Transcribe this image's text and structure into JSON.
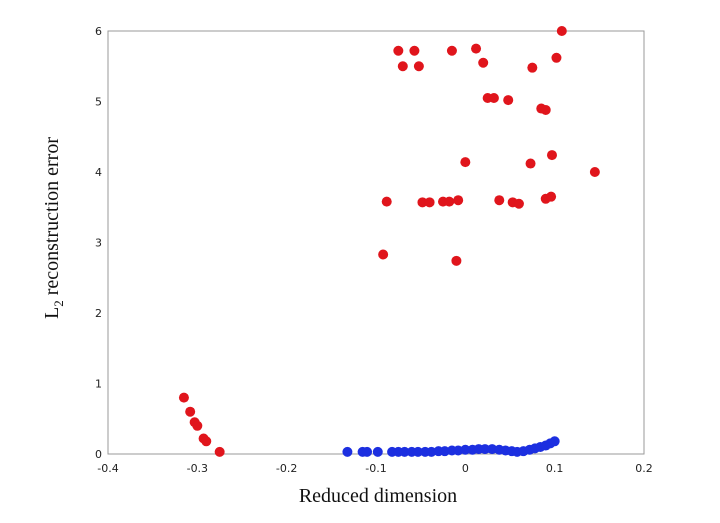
{
  "chart_data": {
    "type": "scatter",
    "title": "",
    "xlabel": "Reduced dimension",
    "ylabel_main": "L",
    "ylabel_sub": "2",
    "ylabel_rest": " reconstruction error",
    "xlim": [
      -0.4,
      0.2
    ],
    "ylim": [
      0,
      6
    ],
    "xticks": [
      "-0.4",
      "-0.3",
      "-0.2",
      "-0.1",
      "0",
      "0.1",
      "0.2"
    ],
    "yticks": [
      "0",
      "1",
      "2",
      "3",
      "4",
      "5",
      "6"
    ],
    "grid": false,
    "legend": "none",
    "series": [
      {
        "color": "#e0151c",
        "points": [
          [
            -0.315,
            0.8
          ],
          [
            -0.308,
            0.6
          ],
          [
            -0.303,
            0.45
          ],
          [
            -0.3,
            0.4
          ],
          [
            -0.293,
            0.22
          ],
          [
            -0.29,
            0.18
          ],
          [
            -0.275,
            0.03
          ],
          [
            -0.092,
            2.83
          ],
          [
            -0.088,
            3.58
          ],
          [
            -0.075,
            5.72
          ],
          [
            -0.07,
            5.5
          ],
          [
            -0.057,
            5.72
          ],
          [
            -0.052,
            5.5
          ],
          [
            -0.048,
            3.57
          ],
          [
            -0.04,
            3.57
          ],
          [
            -0.025,
            3.58
          ],
          [
            -0.018,
            3.58
          ],
          [
            -0.015,
            5.72
          ],
          [
            -0.01,
            2.74
          ],
          [
            -0.008,
            3.6
          ],
          [
            0.0,
            4.14
          ],
          [
            0.012,
            5.75
          ],
          [
            0.02,
            5.55
          ],
          [
            0.025,
            5.05
          ],
          [
            0.032,
            5.05
          ],
          [
            0.038,
            3.6
          ],
          [
            0.048,
            5.02
          ],
          [
            0.053,
            3.57
          ],
          [
            0.06,
            3.55
          ],
          [
            0.073,
            4.12
          ],
          [
            0.075,
            5.48
          ],
          [
            0.085,
            4.9
          ],
          [
            0.09,
            3.62
          ],
          [
            0.09,
            4.88
          ],
          [
            0.096,
            3.65
          ],
          [
            0.097,
            4.24
          ],
          [
            0.102,
            5.62
          ],
          [
            0.108,
            6.0
          ],
          [
            0.145,
            4.0
          ]
        ]
      },
      {
        "color": "#1c2fe0",
        "points": [
          [
            -0.132,
            0.03
          ],
          [
            -0.115,
            0.03
          ],
          [
            -0.11,
            0.03
          ],
          [
            -0.098,
            0.03
          ],
          [
            -0.082,
            0.03
          ],
          [
            -0.075,
            0.03
          ],
          [
            -0.068,
            0.03
          ],
          [
            -0.06,
            0.03
          ],
          [
            -0.053,
            0.03
          ],
          [
            -0.045,
            0.03
          ],
          [
            -0.038,
            0.03
          ],
          [
            -0.03,
            0.04
          ],
          [
            -0.023,
            0.04
          ],
          [
            -0.015,
            0.05
          ],
          [
            -0.008,
            0.05
          ],
          [
            0.0,
            0.06
          ],
          [
            0.008,
            0.06
          ],
          [
            0.015,
            0.07
          ],
          [
            0.022,
            0.07
          ],
          [
            0.03,
            0.07
          ],
          [
            0.038,
            0.06
          ],
          [
            0.045,
            0.05
          ],
          [
            0.052,
            0.04
          ],
          [
            0.058,
            0.03
          ],
          [
            0.065,
            0.04
          ],
          [
            0.072,
            0.06
          ],
          [
            0.078,
            0.08
          ],
          [
            0.084,
            0.1
          ],
          [
            0.09,
            0.12
          ],
          [
            0.095,
            0.15
          ],
          [
            0.1,
            0.18
          ]
        ]
      }
    ]
  }
}
